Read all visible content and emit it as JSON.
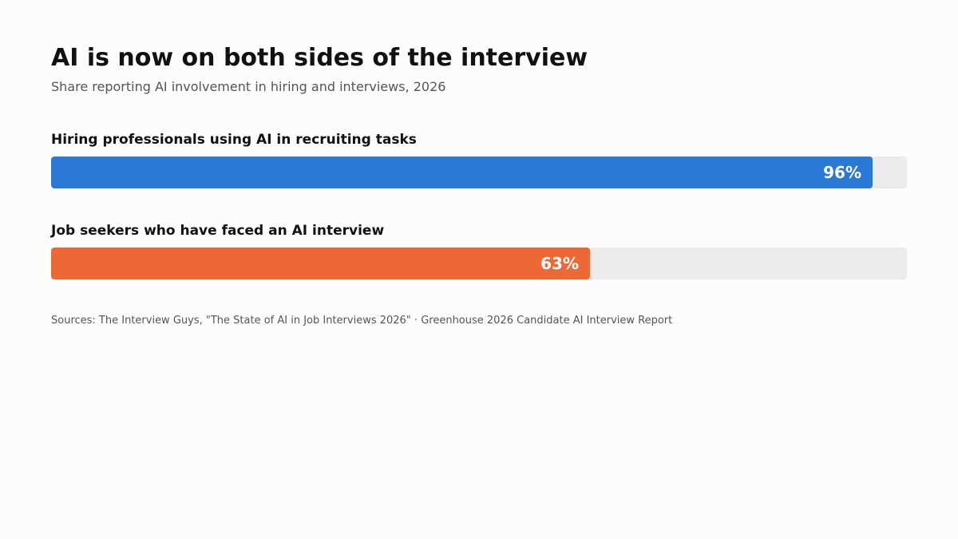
{
  "chart_data": {
    "type": "bar",
    "orientation": "horizontal",
    "title": "AI is now on both sides of the interview",
    "subtitle": "Share reporting AI involvement in hiring and interviews, 2026",
    "xlim": [
      0,
      100
    ],
    "unit": "%",
    "categories": [
      "Hiring professionals using AI in recruiting tasks",
      "Job seekers who have faced an AI interview"
    ],
    "values": [
      96,
      63
    ],
    "value_labels": [
      "96%",
      "63%"
    ],
    "colors": [
      "#2a78d6",
      "#ec6935"
    ],
    "track_color": "#ecebe9",
    "grid": false,
    "legend": "none"
  },
  "source": "Sources: The Interview Guys, \"The State of AI in Job Interviews 2026\" · Greenhouse 2026 Candidate AI Interview Report"
}
